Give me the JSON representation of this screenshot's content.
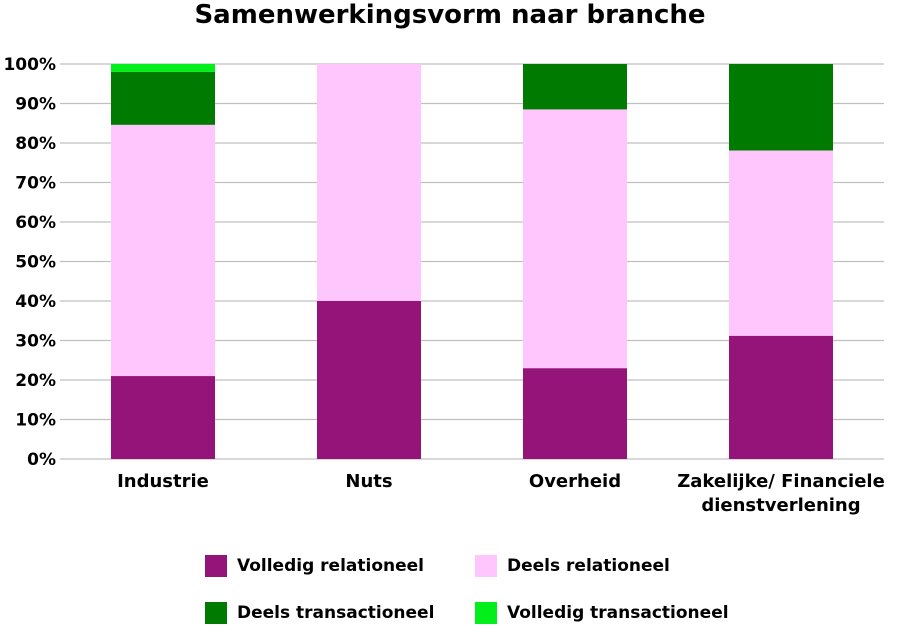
{
  "chart_data": {
    "type": "bar",
    "stacked": "percent",
    "title": "Samenwerkingsvorm naar branche",
    "categories": [
      [
        "Industrie"
      ],
      [
        "Nuts"
      ],
      [
        "Overheid"
      ],
      [
        "Zakelijke/ Financiele",
        "dienstverlening"
      ]
    ],
    "series": [
      {
        "name": "Volledig relationeel",
        "color": "#941479",
        "values": [
          21,
          40,
          23,
          31.2
        ]
      },
      {
        "name": "Deels relationeel",
        "color": "#fec6fd",
        "values": [
          63.6,
          60,
          65.5,
          46.9
        ]
      },
      {
        "name": "Deels transactioneel",
        "color": "#007a01",
        "values": [
          13.4,
          0,
          11.5,
          21.9
        ]
      },
      {
        "name": "Volledig transactioneel",
        "color": "#03ef1b",
        "values": [
          2,
          0,
          0,
          0
        ]
      }
    ],
    "ylim": [
      0,
      100
    ],
    "yticks": [
      "0%",
      "10%",
      "20%",
      "30%",
      "40%",
      "50%",
      "60%",
      "70%",
      "80%",
      "90%",
      "100%"
    ],
    "grid": true,
    "legend_position": "bottom"
  }
}
